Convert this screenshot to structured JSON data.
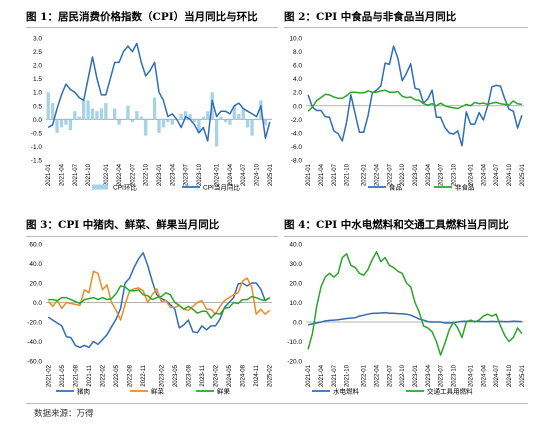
{
  "source": "数据来源：万得",
  "chart_data": [
    {
      "type": "line",
      "title": "图 1：居民消费价格指数（CPI）当月同比与环比",
      "ylim": [
        -1.5,
        3.0
      ],
      "yticks": [
        -1.5,
        -1.0,
        -0.5,
        0.0,
        0.5,
        1.0,
        1.5,
        2.0,
        2.5,
        3.0
      ],
      "ytick_labels": [
        "-1.5",
        "-1.0",
        "-0.5",
        "0.0",
        "0.5",
        "1.0",
        "1.5",
        "2.0",
        "2.5",
        "3.0"
      ],
      "x_labels": [
        "2021-01",
        "2021-04",
        "2021-07",
        "2021-10",
        "2022-01",
        "2022-04",
        "2022-07",
        "2022-10",
        "2023-01",
        "2023-04",
        "2023-07",
        "2023-10",
        "2024-01",
        "2024-04",
        "2024-07",
        "2024-10",
        "2025-01"
      ],
      "n_points": 51,
      "series": [
        {
          "name": "CPI环比",
          "kind": "bar",
          "color": "#a6d3e6",
          "values": [
            1.0,
            0.6,
            -0.5,
            -0.3,
            -0.2,
            -0.4,
            0.3,
            0.1,
            0.7,
            0.7,
            0.4,
            0.3,
            0.4,
            0.6,
            0.0,
            0.4,
            -0.2,
            0.0,
            0.5,
            -0.1,
            0.3,
            0.1,
            -0.6,
            0.0,
            0.8,
            -0.5,
            -0.3,
            -0.1,
            -0.2,
            0.0,
            0.2,
            0.3,
            0.2,
            -0.1,
            -0.5,
            0.1,
            0.3,
            1.0,
            -1.0,
            0.1,
            -0.1,
            -0.2,
            0.5,
            0.2,
            0.4,
            -0.3,
            -0.6,
            0.0,
            0.7,
            -0.2,
            0.0
          ]
        },
        {
          "name": "CPI当月同比",
          "kind": "line",
          "color": "#2f6eb5",
          "values": [
            -0.3,
            -0.2,
            0.4,
            0.9,
            1.3,
            1.1,
            1.0,
            0.8,
            0.7,
            1.5,
            2.3,
            1.5,
            0.9,
            0.9,
            1.5,
            2.1,
            2.1,
            2.5,
            2.7,
            2.5,
            2.8,
            2.1,
            1.6,
            1.8,
            2.1,
            1.0,
            0.7,
            0.1,
            0.2,
            0.0,
            -0.3,
            0.1,
            0.0,
            -0.2,
            -0.5,
            -0.3,
            -0.8,
            0.7,
            0.1,
            0.3,
            0.3,
            0.2,
            0.5,
            0.6,
            0.4,
            0.3,
            0.2,
            0.1,
            0.5,
            -0.7,
            -0.1
          ]
        }
      ]
    },
    {
      "type": "line",
      "title": "图 2：CPI 中食品与非食品当月同比",
      "ylim": [
        -8.0,
        10.0
      ],
      "yticks": [
        -8,
        -6,
        -4,
        -2,
        0,
        2,
        4,
        6,
        8,
        10
      ],
      "ytick_labels": [
        "-8.0",
        "-6.0",
        "-4.0",
        "-2.0",
        "0.0",
        "2.0",
        "4.0",
        "6.0",
        "8.0",
        "10.0"
      ],
      "x_labels": [
        "2021-01",
        "2021-04",
        "2021-07",
        "2021-10",
        "2022-01",
        "2022-04",
        "2022-07",
        "2022-10",
        "2023-01",
        "2023-04",
        "2023-07",
        "2023-10",
        "2024-01",
        "2024-04",
        "2024-07",
        "2024-10",
        "2025-01"
      ],
      "n_points": 51,
      "series": [
        {
          "name": "食品",
          "kind": "line",
          "color": "#2f6eb5",
          "values": [
            1.6,
            -0.2,
            -0.7,
            -0.7,
            -1.6,
            -1.7,
            -3.7,
            -4.1,
            -5.2,
            -2.4,
            1.6,
            -1.2,
            -3.9,
            -3.9,
            -1.5,
            1.9,
            2.3,
            2.9,
            6.3,
            6.1,
            8.8,
            7.0,
            3.7,
            4.8,
            6.2,
            2.6,
            2.4,
            0.4,
            1.0,
            2.3,
            -1.7,
            -1.7,
            -3.2,
            -4.0,
            -4.2,
            -3.7,
            -5.9,
            -0.9,
            -2.7,
            -2.7,
            -1.0,
            -2.1,
            0.0,
            2.8,
            3.0,
            2.9,
            1.0,
            -0.5,
            -0.8,
            -3.3,
            -1.4
          ]
        },
        {
          "name": "非食品",
          "kind": "line",
          "color": "#2aa52a",
          "values": [
            -0.8,
            -0.2,
            0.8,
            1.2,
            1.7,
            1.6,
            1.3,
            1.1,
            1.1,
            1.5,
            2.0,
            2.0,
            1.9,
            1.9,
            2.2,
            2.0,
            2.0,
            2.2,
            2.3,
            2.0,
            2.0,
            2.1,
            1.4,
            1.2,
            1.3,
            0.9,
            0.8,
            0.3,
            0.1,
            0.3,
            0.0,
            0.4,
            0.0,
            -0.2,
            -0.3,
            -0.4,
            -0.1,
            0.2,
            0.0,
            0.5,
            0.3,
            0.4,
            0.2,
            0.4,
            0.5,
            0.3,
            0.2,
            0.1,
            0.7,
            0.3,
            0.2
          ]
        }
      ]
    },
    {
      "type": "line",
      "title": "图 3：CPI 中猪肉、鲜菜、鲜果当月同比",
      "ylim": [
        -60.0,
        60.0
      ],
      "yticks": [
        -60,
        -40,
        -20,
        0,
        20,
        40,
        60
      ],
      "ytick_labels": [
        "-60.0",
        "-40.0",
        "-20.0",
        "0.0",
        "20.0",
        "40.0",
        "60.0"
      ],
      "x_labels": [
        "2021-02",
        "2021-05",
        "2021-08",
        "2021-11",
        "2022-02",
        "2022-05",
        "2022-08",
        "2022-11",
        "2023-02",
        "2023-05",
        "2023-08",
        "2023-11",
        "2024-02",
        "2024-05",
        "2024-08",
        "2024-11",
        "2025-02"
      ],
      "n_points": 50,
      "series": [
        {
          "name": "猪肉",
          "kind": "line",
          "color": "#2f6eb5",
          "values": [
            -15,
            -18,
            -21,
            -24,
            -35,
            -36,
            -44,
            -46,
            -44,
            -46,
            -40,
            -43,
            -38,
            -33,
            -25,
            -17,
            -6,
            20,
            25,
            36,
            45,
            51,
            38,
            22,
            8,
            4,
            2,
            -2,
            -7,
            -26,
            -23,
            -18,
            -30,
            -31,
            -24,
            -28,
            -24,
            -24,
            -17,
            -5,
            0,
            5,
            19,
            20,
            17,
            20,
            20,
            14,
            2,
            5
          ]
        },
        {
          "name": "鲜菜",
          "kind": "line",
          "color": "#f08a25",
          "values": [
            1,
            -4,
            2,
            -6,
            0,
            -1,
            -2,
            -3,
            13,
            10,
            32,
            30,
            13,
            18,
            0,
            -8,
            -18,
            -2,
            12,
            14,
            15,
            12,
            0,
            8,
            14,
            1,
            2,
            -5,
            -5,
            -3,
            -7,
            -8,
            -4,
            0,
            2,
            -7,
            -7,
            -12,
            -4,
            2,
            5,
            8,
            10,
            22,
            25,
            16,
            -12,
            -7,
            -12,
            -8
          ]
        },
        {
          "name": "鲜果",
          "kind": "line",
          "color": "#2aa52a",
          "values": [
            3,
            3,
            2,
            5,
            5,
            3,
            1,
            -1,
            3,
            4,
            5,
            3,
            5,
            3,
            4,
            9,
            17,
            16,
            12,
            12,
            13,
            8,
            7,
            3,
            5,
            6,
            10,
            8,
            0,
            -3,
            -7,
            -4,
            -7,
            -11,
            -9,
            -9,
            -16,
            -11,
            -12,
            -6,
            -5,
            0,
            -1,
            3,
            3,
            6,
            5,
            3,
            2,
            5
          ]
        }
      ]
    },
    {
      "type": "line",
      "title": "图 4：CPI 中水电燃料和交通工具燃料当月同比",
      "ylim": [
        -20.0,
        40.0
      ],
      "yticks": [
        -20,
        -10,
        0,
        10,
        20,
        30,
        40
      ],
      "ytick_labels": [
        "-20.0",
        "-10.0",
        "0.0",
        "10.0",
        "20.0",
        "30.0",
        "40.0"
      ],
      "x_labels": [
        "2021-01",
        "2021-04",
        "2021-07",
        "2021-10",
        "2022-01",
        "2022-04",
        "2022-07",
        "2022-10",
        "2023-01",
        "2023-04",
        "2023-07",
        "2023-10",
        "2024-01",
        "2024-04",
        "2024-07",
        "2024-10",
        "2025-01"
      ],
      "n_points": 51,
      "series": [
        {
          "name": "水电燃料",
          "kind": "line",
          "color": "#2f6eb5",
          "values": [
            -1.5,
            -1,
            -0.5,
            0,
            0.5,
            0.8,
            1,
            1.2,
            1.5,
            1.8,
            2,
            2.2,
            3,
            3.5,
            4,
            4.4,
            4.5,
            4.6,
            4.8,
            4.5,
            4.5,
            4.3,
            4.2,
            4,
            3.5,
            2.5,
            1.5,
            1,
            0.2,
            0,
            0,
            0,
            -0.5,
            -0.5,
            -0.3,
            0,
            0.3,
            0.4,
            0.5,
            0.3,
            0.3,
            0.2,
            0.2,
            0.3,
            0.2,
            0.3,
            0.2,
            0.2,
            0.4,
            0.3,
            0.2
          ]
        },
        {
          "name": "交通工具用燃料",
          "kind": "line",
          "color": "#2aa52a",
          "values": [
            -14,
            -6,
            8,
            18,
            23,
            25,
            23,
            25,
            33,
            35,
            29,
            28,
            25,
            24,
            27,
            32,
            36,
            31,
            33,
            29,
            28,
            26,
            25,
            20,
            18,
            10,
            5,
            -2,
            -3,
            -5,
            -10,
            -17,
            -11,
            -4,
            0,
            -3,
            -8,
            0,
            1,
            0,
            1,
            3,
            4,
            3,
            4,
            -2,
            -7,
            -10,
            -8,
            -3,
            -6
          ]
        }
      ]
    }
  ]
}
